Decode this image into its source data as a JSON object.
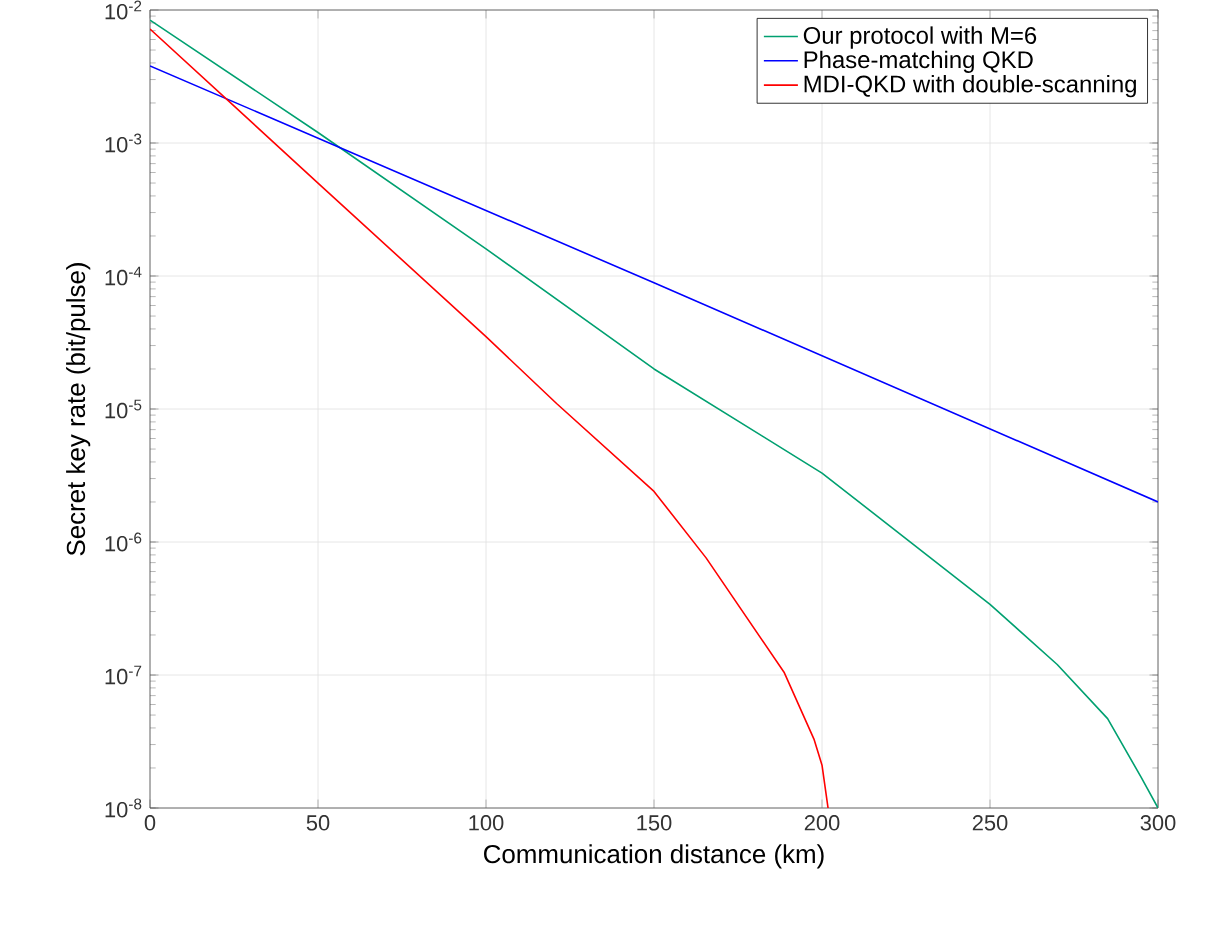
{
  "chart_data": {
    "type": "line",
    "xlabel": "Communication distance (km)",
    "ylabel": "Secret key rate (bit/pulse)",
    "log": "y",
    "grid": true,
    "legend": "top right",
    "marker": "none",
    "line_style": "solid",
    "xlim": [
      0,
      300
    ],
    "ylim": [
      1e-08,
      0.01
    ],
    "xticks": [
      0,
      50,
      100,
      150,
      200,
      250,
      300
    ],
    "yticks": [
      {
        "value": 1e-08,
        "label": "10$^{-8}$"
      },
      {
        "value": 1e-07,
        "label": "10$^{-7}$"
      },
      {
        "value": 1e-06,
        "label": "10$^{-6}$"
      },
      {
        "value": 1e-05,
        "label": "10$^{-5}$"
      },
      {
        "value": 0.0001,
        "label": "10$^{-4}$"
      },
      {
        "value": 0.001,
        "label": "10$^{-3}$"
      },
      {
        "value": 0.01,
        "label": "10$^{-2}$"
      }
    ],
    "series": [
      {
        "name": "Our protocol with M=6",
        "color": "#00a070",
        "x": [
          0,
          50,
          100,
          150,
          200,
          250,
          270,
          285,
          295,
          300
        ],
        "values": [
          0.0084,
          0.0012,
          0.00016,
          2e-05,
          3.3e-06,
          3.4e-07,
          1.2e-07,
          4.7e-08,
          1.7e-08,
          1e-08
        ]
      },
      {
        "name": "Phase-matching QKD",
        "color": "#0000ff",
        "x": [
          0,
          150,
          300
        ],
        "values": [
          0.0038,
          8.9e-05,
          2e-06
        ]
      },
      {
        "name": "MDI-QKD with double-scanning",
        "color": "#ff0000",
        "x": [
          0,
          50,
          100,
          121,
          150,
          165.5,
          188.7,
          197.6,
          200,
          201.8
        ],
        "values": [
          0.0072,
          0.0005,
          3.5e-05,
          1.1e-05,
          2.4e-06,
          7.6e-07,
          1.05e-07,
          3.3e-08,
          2.1e-08,
          1e-08
        ]
      }
    ]
  }
}
